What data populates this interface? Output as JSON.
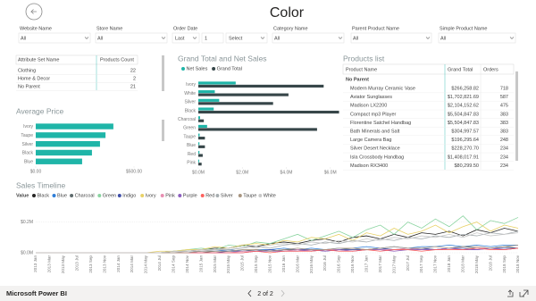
{
  "header": {
    "title": "Color"
  },
  "filters": [
    {
      "label": "Website Name",
      "value": "All"
    },
    {
      "label": "Store Name",
      "value": "All"
    },
    {
      "label": "Order Date",
      "range": "Last",
      "count": "1",
      "period": "Select"
    },
    {
      "label": "Category Name",
      "value": "All"
    },
    {
      "label": "Parent Product Name",
      "value": "All"
    },
    {
      "label": "Simple Product Name",
      "value": "All"
    }
  ],
  "attribute_table": {
    "columns": [
      "Attribute Set Name",
      "Products Count"
    ],
    "rows": [
      [
        "Clothing",
        22
      ],
      [
        "Home & Decor",
        2
      ],
      [
        "No Parent",
        21
      ]
    ]
  },
  "products_table": {
    "title": "Products list",
    "columns": [
      "Product Name",
      "Grand Total",
      "Orders"
    ],
    "group": "No Parent",
    "rows": [
      [
        "Modern Murray Ceramic Vase",
        "$266,258.82",
        718
      ],
      [
        "Aviator Sunglasses",
        "$1,702,821.69",
        587
      ],
      [
        "Madison LX2200",
        "$2,104,152.62",
        475
      ],
      [
        "Compact mp3 Player",
        "$5,504,847.83",
        383
      ],
      [
        "Florentine Satchel Handbag",
        "$5,504,847.83",
        383
      ],
      [
        "Bath Minerals and Salt",
        "$304,997.57",
        383
      ],
      [
        "Large Camera Bag",
        "$196,295.64",
        248
      ],
      [
        "Silver Desert Necklace",
        "$228,270.70",
        234
      ],
      [
        "Isla Crossbody Handbag",
        "$1,408,017.91",
        234
      ],
      [
        "Madison RX3400",
        "$80,299.50",
        234
      ]
    ]
  },
  "chart_data": [
    {
      "type": "bar",
      "title": "Average Price",
      "categories": [
        "Ivory",
        "Taupe",
        "Silver",
        "Black",
        "Blue"
      ],
      "values": [
        395,
        355,
        327,
        286,
        236
      ],
      "color": "#1fb5a8",
      "xlim": [
        0,
        500
      ],
      "xticks": [
        {
          "value": 0,
          "label": "$0.00"
        },
        {
          "value": 500,
          "label": "$500.00"
        }
      ]
    },
    {
      "type": "bar",
      "title": "Grand Total and Net Sales",
      "categories": [
        "Ivory",
        "White",
        "Silver",
        "Black",
        "Charcoal",
        "Green",
        "Taupe",
        "Blue",
        "Red",
        "Pink"
      ],
      "series": [
        {
          "name": "Net Sales",
          "color": "#1fb5a8",
          "values": [
            1.7,
            0.75,
            0.95,
            0.7,
            0.08,
            0.4,
            0.06,
            0.05,
            0.05,
            0.04
          ]
        },
        {
          "name": "Grand Total",
          "color": "#374649",
          "values": [
            5.7,
            4.1,
            3.4,
            6.4,
            0.25,
            5.4,
            0.3,
            0.3,
            0.2,
            0.15
          ]
        }
      ],
      "xlim": [
        0,
        6.5
      ],
      "xticks": [
        {
          "value": 0,
          "label": "$0.0M"
        },
        {
          "value": 2,
          "label": "$2.0M"
        },
        {
          "value": 4,
          "label": "$4.0M"
        },
        {
          "value": 6,
          "label": "$6.0M"
        }
      ]
    },
    {
      "type": "line",
      "title": "Sales Timeline",
      "legend_title": "Value",
      "grid": true,
      "categories": [
        "2013 Jan",
        "2013 Mar",
        "2013 May",
        "2013 Jul",
        "2013 Sep",
        "2013 Nov",
        "2014 Jan",
        "2014 Mar",
        "2014 May",
        "2014 Jul",
        "2014 Sep",
        "2014 Nov",
        "2015 Jan",
        "2015 Mar",
        "2015 May",
        "2015 Jul",
        "2015 Sep",
        "2015 Nov",
        "2016 Jan",
        "2016 Mar",
        "2016 May",
        "2016 Jul",
        "2016 Sep",
        "2016 Nov",
        "2017 Jan",
        "2017 Mar",
        "2017 May",
        "2017 Jul",
        "2017 Sep",
        "2017 Nov",
        "2018 Jan",
        "2018 Mar",
        "2018 May",
        "2018 Jul",
        "2018 Sep",
        "2018 Nov"
      ],
      "ylim": [
        0,
        0.25
      ],
      "yticks": [
        {
          "value": 0,
          "label": "$0.0M"
        },
        {
          "value": 0.2,
          "label": "$0.2M"
        }
      ],
      "series": [
        {
          "name": "Black",
          "color": "#252423",
          "values": [
            0,
            0,
            0,
            0,
            0,
            0,
            0,
            0,
            0,
            0,
            0.01,
            0.01,
            0.02,
            0.03,
            0.03,
            0.05,
            0.04,
            0.06,
            0.07,
            0.06,
            0.08,
            0.09,
            0.07,
            0.1,
            0.11,
            0.09,
            0.12,
            0.1,
            0.13,
            0.12,
            0.14,
            0.11,
            0.15,
            0.13,
            0.16,
            0.14
          ]
        },
        {
          "name": "Blue",
          "color": "#2f7ed8",
          "values": [
            0,
            0,
            0,
            0,
            0,
            0,
            0,
            0,
            0,
            0,
            0,
            0,
            0.01,
            0.01,
            0.02,
            0.01,
            0.02,
            0.02,
            0.03,
            0.02,
            0.03,
            0.02,
            0.03,
            0.03,
            0.04,
            0.03,
            0.04,
            0.03,
            0.04,
            0.04,
            0.05,
            0.04,
            0.05,
            0.04,
            0.05,
            0.05
          ]
        },
        {
          "name": "Charcoal",
          "color": "#5f6b6d",
          "values": [
            0,
            0,
            0,
            0,
            0,
            0,
            0,
            0,
            0,
            0,
            0,
            0,
            0,
            0.01,
            0.01,
            0.01,
            0.02,
            0.01,
            0.02,
            0.02,
            0.01,
            0.02,
            0.02,
            0.03,
            0.02,
            0.03,
            0.02,
            0.03,
            0.03,
            0.02,
            0.03,
            0.04,
            0.03,
            0.03,
            0.04,
            0.03
          ]
        },
        {
          "name": "Green",
          "color": "#8ad4a0",
          "values": [
            0,
            0,
            0,
            0,
            0,
            0,
            0,
            0,
            0,
            0,
            0.01,
            0.02,
            0.03,
            0.02,
            0.05,
            0.04,
            0.07,
            0.06,
            0.09,
            0.12,
            0.08,
            0.11,
            0.14,
            0.1,
            0.15,
            0.18,
            0.12,
            0.2,
            0.16,
            0.22,
            0.17,
            0.24,
            0.15,
            0.21,
            0.19,
            0.23
          ]
        },
        {
          "name": "Indigo",
          "color": "#3f4fa8",
          "values": [
            0,
            0,
            0,
            0,
            0,
            0,
            0,
            0,
            0,
            0,
            0,
            0,
            0,
            0,
            0.01,
            0.01,
            0.01,
            0.02,
            0.01,
            0.02,
            0.02,
            0.01,
            0.02,
            0.02,
            0.02,
            0.03,
            0.02,
            0.02,
            0.03,
            0.02,
            0.03,
            0.03,
            0.02,
            0.03,
            0.03,
            0.03
          ]
        },
        {
          "name": "Ivory",
          "color": "#e8d166",
          "values": [
            0,
            0,
            0,
            0,
            0,
            0,
            0,
            0,
            0,
            0.01,
            0.01,
            0.02,
            0.02,
            0.04,
            0.03,
            0.05,
            0.06,
            0.05,
            0.08,
            0.07,
            0.1,
            0.09,
            0.12,
            0.08,
            0.13,
            0.11,
            0.16,
            0.12,
            0.14,
            0.18,
            0.13,
            0.17,
            0.2,
            0.14,
            0.18,
            0.16
          ]
        },
        {
          "name": "Pink",
          "color": "#e88fb2",
          "values": [
            0,
            0,
            0,
            0,
            0,
            0,
            0,
            0,
            0,
            0,
            0,
            0,
            0,
            0,
            0,
            0.01,
            0.01,
            0.01,
            0.01,
            0.02,
            0.01,
            0.02,
            0.02,
            0.01,
            0.02,
            0.02,
            0.02,
            0.03,
            0.02,
            0.02,
            0.03,
            0.02,
            0.03,
            0.03,
            0.02,
            0.03
          ]
        },
        {
          "name": "Purple",
          "color": "#8d5fbf",
          "values": [
            0,
            0,
            0,
            0,
            0,
            0,
            0,
            0,
            0,
            0,
            0,
            0,
            0,
            0,
            0,
            0,
            0.01,
            0.01,
            0.01,
            0.01,
            0.02,
            0.01,
            0.02,
            0.01,
            0.02,
            0.02,
            0.01,
            0.02,
            0.02,
            0.02,
            0.03,
            0.02,
            0.02,
            0.03,
            0.02,
            0.03
          ]
        },
        {
          "name": "Red",
          "color": "#fd625e",
          "values": [
            0,
            0,
            0,
            0,
            0,
            0,
            0,
            0,
            0,
            0,
            0,
            0,
            0,
            0,
            0,
            0,
            0.01,
            0,
            0.01,
            0.01,
            0.01,
            0.02,
            0.01,
            0.01,
            0.02,
            0.01,
            0.02,
            0.02,
            0.01,
            0.02,
            0.02,
            0.02,
            0.03,
            0.02,
            0.02,
            0.03
          ]
        },
        {
          "name": "Silver",
          "color": "#a6adb0",
          "values": [
            0,
            0,
            0,
            0,
            0,
            0,
            0,
            0,
            0,
            0,
            0,
            0.01,
            0.01,
            0.02,
            0.02,
            0.03,
            0.04,
            0.03,
            0.05,
            0.06,
            0.05,
            0.07,
            0.06,
            0.08,
            0.07,
            0.09,
            0.08,
            0.1,
            0.09,
            0.11,
            0.1,
            0.12,
            0.11,
            0.13,
            0.12,
            0.14
          ]
        },
        {
          "name": "Taupe",
          "color": "#a89580",
          "values": [
            0,
            0,
            0,
            0,
            0,
            0,
            0,
            0,
            0,
            0,
            0,
            0,
            0.01,
            0.01,
            0.01,
            0.02,
            0.02,
            0.01,
            0.02,
            0.03,
            0.02,
            0.02,
            0.03,
            0.03,
            0.02,
            0.03,
            0.04,
            0.03,
            0.03,
            0.04,
            0.03,
            0.04,
            0.04,
            0.03,
            0.04,
            0.05
          ]
        },
        {
          "name": "White",
          "color": "#c8c8c8",
          "values": [
            0,
            0,
            0,
            0,
            0,
            0,
            0,
            0,
            0,
            0,
            0.01,
            0.01,
            0.02,
            0.02,
            0.03,
            0.04,
            0.03,
            0.05,
            0.06,
            0.05,
            0.07,
            0.06,
            0.08,
            0.07,
            0.09,
            0.08,
            0.1,
            0.09,
            0.11,
            0.1,
            0.12,
            0.1,
            0.13,
            0.11,
            0.12,
            0.13
          ]
        }
      ]
    }
  ],
  "footer": {
    "app": "Microsoft Power BI",
    "page": "2 of 2"
  }
}
